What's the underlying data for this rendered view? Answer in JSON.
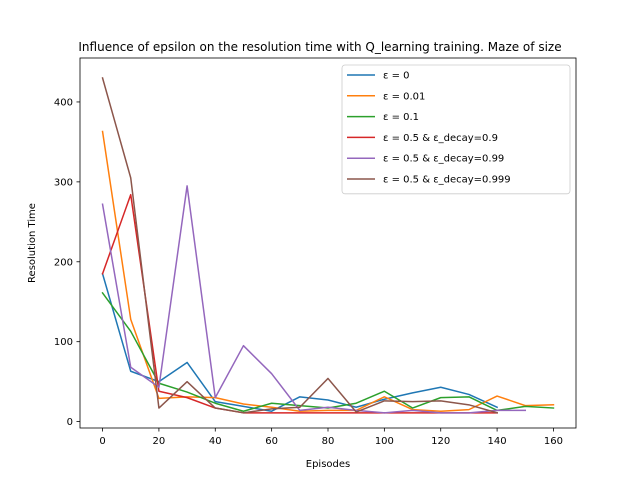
{
  "chart_data": {
    "type": "line",
    "title": "Influence of epsilon on the resolution time with Q_learning training. Maze of size",
    "xlabel": "Episodes",
    "ylabel": "Resolution Time",
    "xlim": [
      -8,
      168
    ],
    "ylim": [
      -8,
      455
    ],
    "xticks": [
      0,
      20,
      40,
      60,
      80,
      100,
      120,
      140,
      160
    ],
    "yticks": [
      0,
      100,
      200,
      300,
      400
    ],
    "grid": false,
    "legend_position": "top-right",
    "series": [
      {
        "name": "ε = 0",
        "color": "#1f77b4",
        "x": [
          0,
          10,
          20,
          30,
          40,
          50,
          60,
          70,
          80,
          90,
          100,
          110,
          120,
          130,
          140
        ],
        "y": [
          185,
          63,
          50,
          74,
          25,
          19,
          13,
          31,
          27,
          18,
          28,
          36,
          43,
          34,
          18
        ]
      },
      {
        "name": "ε = 0.01",
        "color": "#ff7f0e",
        "x": [
          0,
          10,
          20,
          30,
          40,
          50,
          60,
          70,
          80,
          90,
          100,
          110,
          120,
          130,
          140,
          150,
          160
        ],
        "y": [
          363,
          128,
          29,
          31,
          30,
          22,
          18,
          13,
          14,
          14,
          31,
          15,
          13,
          15,
          32,
          20,
          21
        ]
      },
      {
        "name": "ε = 0.1",
        "color": "#2ca02c",
        "x": [
          0,
          10,
          20,
          30,
          40,
          50,
          60,
          70,
          80,
          90,
          100,
          110,
          120,
          130,
          140,
          150,
          160
        ],
        "y": [
          161,
          113,
          48,
          37,
          23,
          13,
          23,
          20,
          17,
          23,
          38,
          17,
          30,
          31,
          14,
          19,
          17
        ]
      },
      {
        "name": "ε = 0.5 & ε_decay=0.9",
        "color": "#d62728",
        "x": [
          0,
          10,
          20,
          30,
          40,
          50,
          60,
          70,
          80,
          90,
          100,
          110,
          120,
          130,
          140
        ],
        "y": [
          185,
          284,
          38,
          30,
          17,
          11,
          11,
          11,
          11,
          11,
          11,
          11,
          11,
          11,
          11
        ]
      },
      {
        "name": "ε = 0.5 & ε_decay=0.99",
        "color": "#9467bd",
        "x": [
          0,
          10,
          20,
          30,
          40,
          50,
          60,
          70,
          80,
          90,
          100,
          110,
          120,
          130,
          140,
          150
        ],
        "y": [
          272,
          68,
          43,
          295,
          30,
          95,
          60,
          14,
          18,
          14,
          11,
          14,
          11,
          11,
          14,
          14
        ]
      },
      {
        "name": "ε = 0.5 & ε_decay=0.999",
        "color": "#8c564b",
        "x": [
          0,
          10,
          20,
          30,
          40,
          50,
          60,
          70,
          80,
          90,
          100,
          110,
          120,
          130,
          140
        ],
        "y": [
          430,
          305,
          17,
          50,
          17,
          11,
          16,
          18,
          54,
          12,
          26,
          25,
          26,
          21,
          11
        ]
      }
    ]
  }
}
